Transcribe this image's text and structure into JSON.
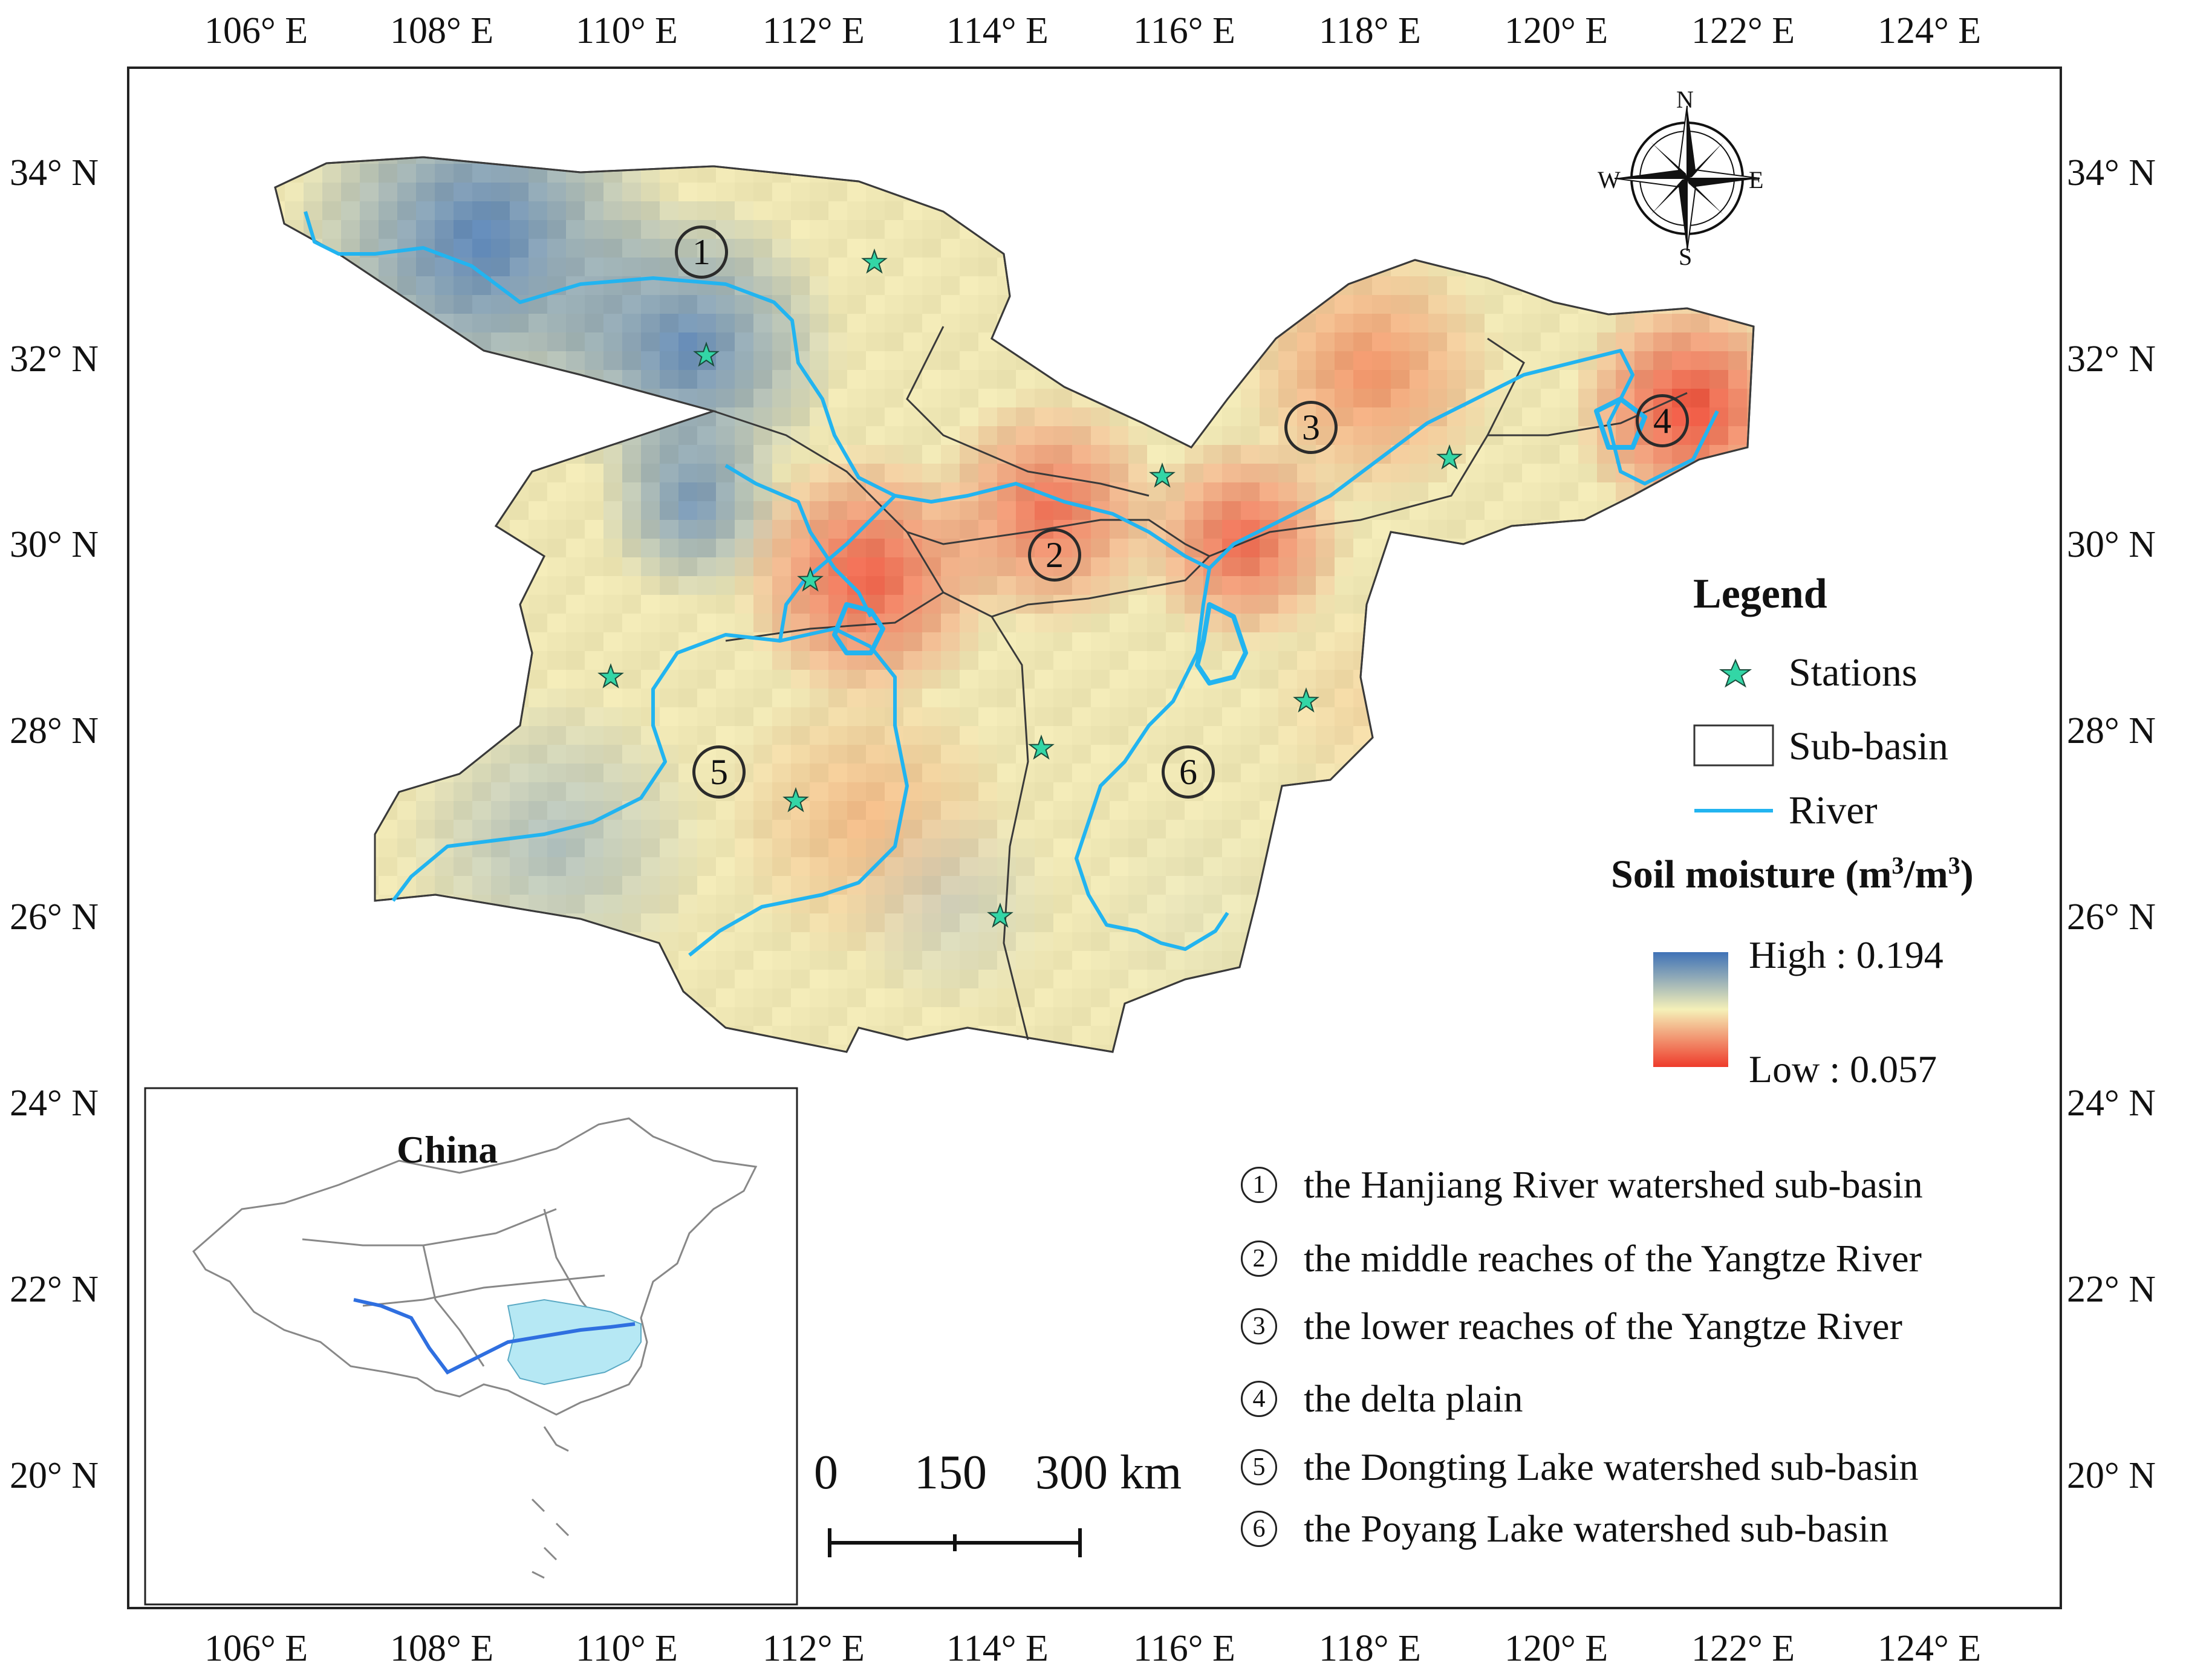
{
  "axes": {
    "top_ticks": [
      "106° E",
      "108° E",
      "110° E",
      "112° E",
      "114° E",
      "116° E",
      "118° E",
      "120° E",
      "122° E",
      "124° E"
    ],
    "bottom_ticks": [
      "106° E",
      "108° E",
      "110° E",
      "112° E",
      "114° E",
      "116° E",
      "118° E",
      "120° E",
      "122° E",
      "124° E"
    ],
    "left_ticks": [
      "34° N",
      "32° N",
      "30° N",
      "28° N",
      "26° N",
      "24° N",
      "22° N",
      "20° N"
    ],
    "right_ticks": [
      "34° N",
      "32° N",
      "30° N",
      "28° N",
      "26° N",
      "24° N",
      "22° N",
      "20° N"
    ]
  },
  "compass": {
    "n": "N",
    "s": "S",
    "e": "E",
    "w": "W"
  },
  "legend": {
    "title": "Legend",
    "stations": "Stations",
    "subbasin": "Sub-basin",
    "river": "River",
    "soil_title": "Soil moisture (m",
    "soil_sup1": "3",
    "soil_mid": "/m",
    "soil_sup2": "3",
    "soil_close": ")",
    "high": "High : 0.194",
    "low": "Low : 0.057",
    "colors": {
      "high": "#3f72b7",
      "mid": "#f5f0b8",
      "low": "#ee3b2b",
      "station": "#33d6a6",
      "river": "#22b4f0"
    }
  },
  "subbasins": [
    {
      "num": "1",
      "label": "the Hanjiang River watershed sub-basin"
    },
    {
      "num": "2",
      "label": "the middle reaches of the Yangtze River"
    },
    {
      "num": "3",
      "label": "the lower reaches of the Yangtze River"
    },
    {
      "num": "4",
      "label": "the delta plain"
    },
    {
      "num": "5",
      "label": "the Dongting Lake watershed sub-basin"
    },
    {
      "num": "6",
      "label": "the Poyang Lake watershed sub-basin"
    }
  ],
  "scalebar": {
    "a": "0",
    "b": "150",
    "c": "300 km"
  },
  "inset": {
    "title": "China"
  }
}
